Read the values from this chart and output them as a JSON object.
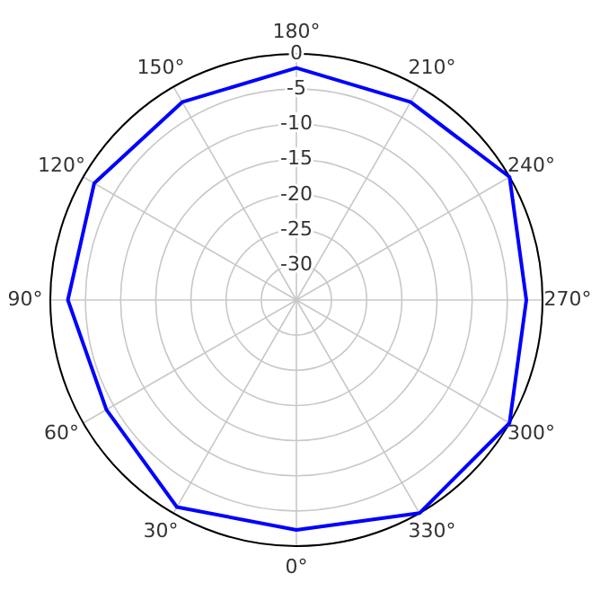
{
  "chart_data": {
    "type": "radar",
    "categories": [
      "180°",
      "210°",
      "240°",
      "270°",
      "300°",
      "330°",
      "0°",
      "30°",
      "60°",
      "90°",
      "120°",
      "150°"
    ],
    "series": [
      {
        "color": "#0000ff",
        "values": [
          -2,
          -2.5,
          0,
          -2.3,
          0,
          0,
          -2.3,
          -1,
          -3.8,
          -2.5,
          -1.8,
          -2.5
        ]
      }
    ],
    "ylim": [
      -35,
      0
    ],
    "yticks": [
      -30,
      -25,
      -20,
      -15,
      -10,
      -5,
      0
    ],
    "grid": true
  }
}
